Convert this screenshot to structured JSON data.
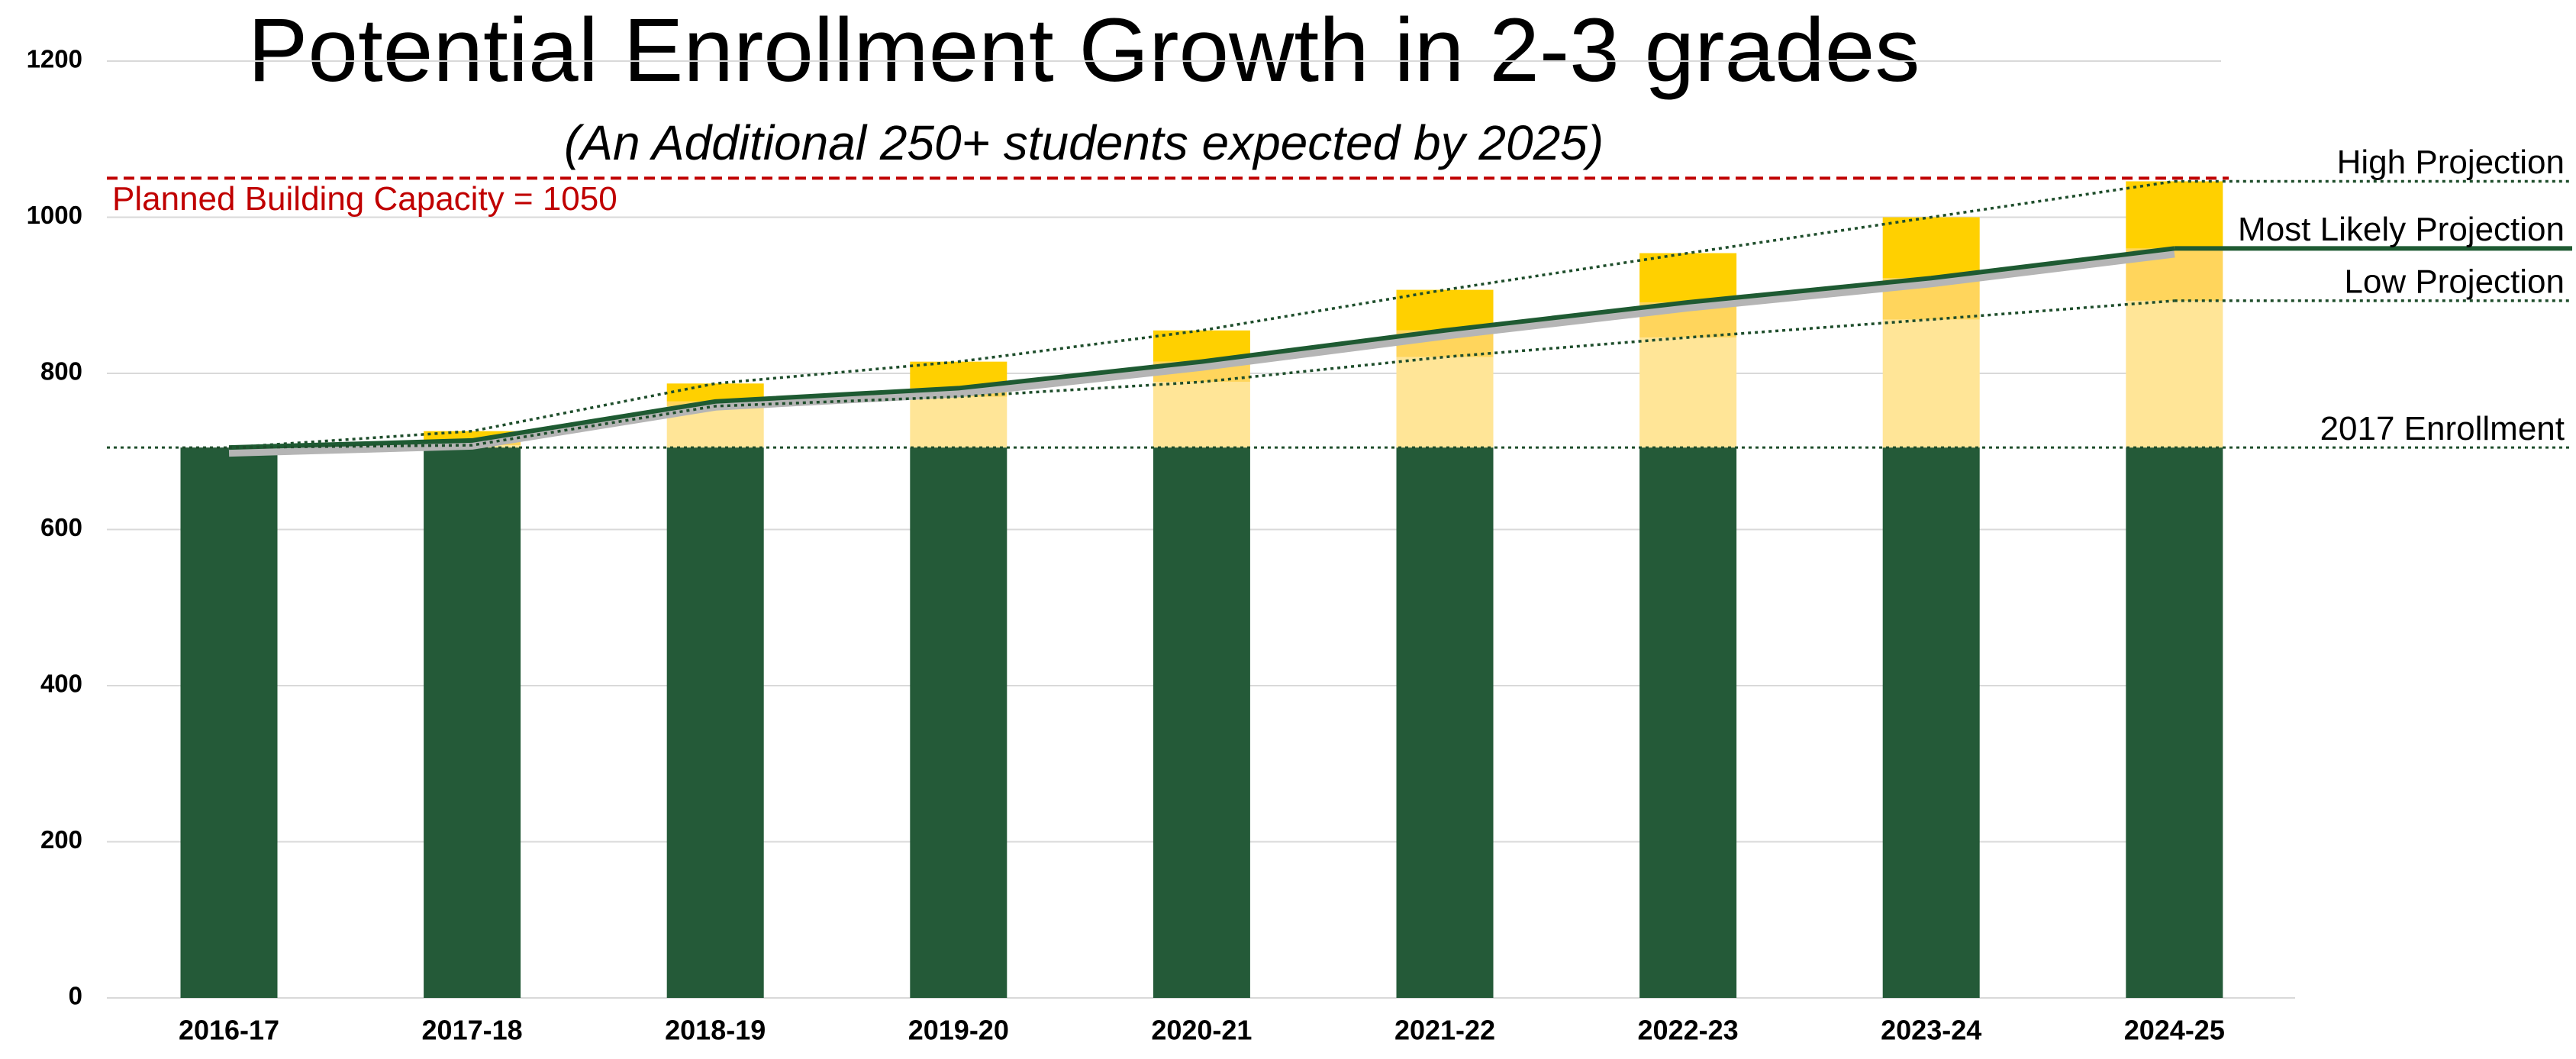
{
  "chart_data": {
    "type": "bar",
    "title": "Potential Enrollment Growth in 2-3 grades",
    "subtitle": "(An Additional 250+ students expected by 2025)",
    "categories": [
      "2016-17",
      "2017-18",
      "2018-19",
      "2019-20",
      "2020-21",
      "2021-22",
      "2022-23",
      "2023-24",
      "2024-25"
    ],
    "series": [
      {
        "color": "#245a38",
        "values": [
          705,
          705,
          705,
          705,
          705,
          705,
          705,
          705,
          705
        ]
      },
      {
        "color": "#ffe597",
        "values": [
          0,
          3,
          53,
          65,
          84,
          116,
          141,
          164,
          188
        ]
      },
      {
        "color": "#ffd55c",
        "values": [
          0,
          6,
          6,
          11,
          26,
          34,
          45,
          53,
          67
        ]
      },
      {
        "color": "#ffd000",
        "values": [
          0,
          12,
          23,
          34,
          40,
          52,
          63,
          78,
          86
        ]
      }
    ],
    "lines": [
      {
        "name": "High Projection",
        "color": "#1e4d2b",
        "style": "dotted",
        "values": [
          705,
          726,
          787,
          815,
          855,
          907,
          954,
          1000,
          1046
        ]
      },
      {
        "name": "Most Likely Projection",
        "color": "#1e5a32",
        "style": "solid",
        "values": [
          705,
          714,
          764,
          781,
          815,
          855,
          891,
          922,
          960
        ]
      },
      {
        "name": "Low Projection",
        "color": "#1e4d2b",
        "style": "dotted",
        "values": [
          705,
          708,
          758,
          770,
          789,
          821,
          846,
          869,
          893
        ]
      }
    ],
    "reference_lines": [
      {
        "label": "2017 Enrollment",
        "value": 705,
        "color": "#1e4d2b",
        "style": "dotted"
      },
      {
        "label": "Planned Building Capacity = 1050",
        "value": 1050,
        "color": "#c00000",
        "style": "dashed"
      }
    ],
    "ylim": [
      0,
      1200
    ],
    "yticks": [
      0,
      200,
      400,
      600,
      800,
      1000,
      1200
    ],
    "grid": true
  }
}
